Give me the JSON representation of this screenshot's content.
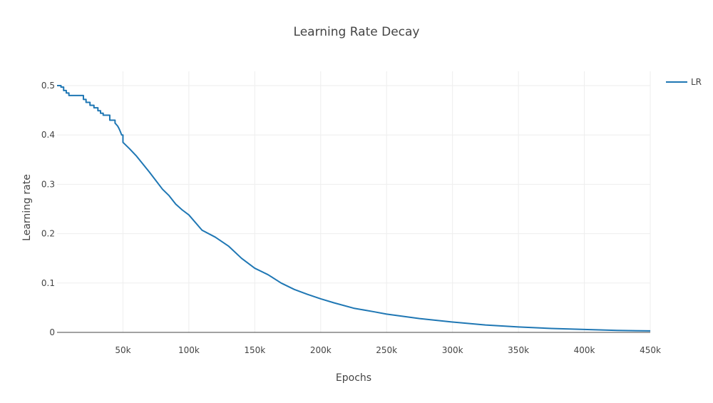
{
  "chart_data": {
    "type": "line",
    "title": "Learning Rate Decay",
    "xlabel": "Epochs",
    "ylabel": "Learning rate",
    "xlim": [
      0,
      450000
    ],
    "ylim": [
      0,
      0.5
    ],
    "x_ticks": [
      {
        "value": 50000,
        "label": "50k"
      },
      {
        "value": 100000,
        "label": "100k"
      },
      {
        "value": 150000,
        "label": "150k"
      },
      {
        "value": 200000,
        "label": "200k"
      },
      {
        "value": 250000,
        "label": "250k"
      },
      {
        "value": 300000,
        "label": "300k"
      },
      {
        "value": 350000,
        "label": "350k"
      },
      {
        "value": 400000,
        "label": "400k"
      },
      {
        "value": 450000,
        "label": "450k"
      }
    ],
    "y_ticks": [
      {
        "value": 0,
        "label": "0"
      },
      {
        "value": 0.1,
        "label": "0.1"
      },
      {
        "value": 0.2,
        "label": "0.2"
      },
      {
        "value": 0.3,
        "label": "0.3"
      },
      {
        "value": 0.4,
        "label": "0.4"
      },
      {
        "value": 0.5,
        "label": "0.5"
      }
    ],
    "grid": true,
    "legend": "top-right",
    "series": [
      {
        "name": "LR",
        "color": "#1f77b4",
        "x": [
          0,
          3000,
          3000,
          5000,
          5000,
          7000,
          7000,
          9000,
          9000,
          20000,
          20000,
          22000,
          22000,
          25000,
          25000,
          28000,
          28000,
          31000,
          31000,
          33000,
          33000,
          35000,
          35000,
          40000,
          40000,
          44000,
          44000,
          46000,
          47000,
          48000,
          49000,
          50000,
          50000,
          55000,
          60000,
          70000,
          80000,
          85000,
          90000,
          95000,
          100000,
          110000,
          120000,
          130000,
          140000,
          150000,
          160000,
          170000,
          180000,
          190000,
          200000,
          210000,
          225000,
          240000,
          250000,
          275000,
          300000,
          325000,
          350000,
          375000,
          400000,
          425000,
          450000
        ],
        "y": [
          0.5,
          0.5,
          0.497,
          0.497,
          0.49,
          0.49,
          0.485,
          0.485,
          0.48,
          0.48,
          0.472,
          0.472,
          0.466,
          0.466,
          0.46,
          0.46,
          0.455,
          0.455,
          0.449,
          0.449,
          0.444,
          0.444,
          0.44,
          0.44,
          0.43,
          0.43,
          0.424,
          0.418,
          0.413,
          0.407,
          0.4,
          0.4,
          0.385,
          0.372,
          0.358,
          0.325,
          0.29,
          0.277,
          0.26,
          0.248,
          0.238,
          0.207,
          0.193,
          0.175,
          0.15,
          0.13,
          0.117,
          0.1,
          0.087,
          0.077,
          0.068,
          0.06,
          0.049,
          0.042,
          0.037,
          0.028,
          0.021,
          0.015,
          0.011,
          0.008,
          0.006,
          0.004,
          0.003
        ]
      }
    ]
  }
}
